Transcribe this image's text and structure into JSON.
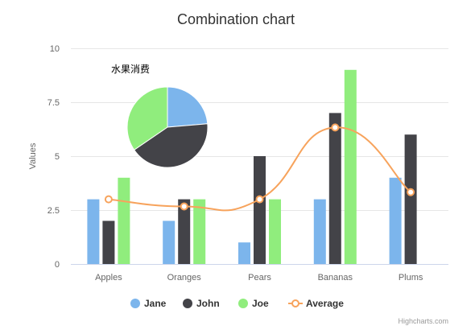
{
  "chart_data": {
    "type": "combination",
    "title": "Combination chart",
    "ylabel": "Values",
    "ylim": [
      0,
      10
    ],
    "yticks": [
      "0",
      "2.5",
      "5",
      "7.5",
      "10"
    ],
    "ytick_values": [
      0,
      2.5,
      5,
      7.5,
      10
    ],
    "grid": true,
    "categories": [
      "Apples",
      "Oranges",
      "Pears",
      "Bananas",
      "Plums"
    ],
    "series": [
      {
        "name": "Jane",
        "type": "bar",
        "color": "#7cb5ec",
        "values": [
          3,
          2,
          1,
          3,
          4
        ]
      },
      {
        "name": "John",
        "type": "bar",
        "color": "#434348",
        "values": [
          2,
          3,
          5,
          7,
          6
        ]
      },
      {
        "name": "Joe",
        "type": "bar",
        "color": "#90ed7d",
        "values": [
          4,
          3,
          3,
          9,
          0
        ]
      },
      {
        "name": "Average",
        "type": "spline",
        "color": "#f7a35c",
        "values": [
          3,
          2.67,
          3,
          6.33,
          3.33
        ]
      }
    ],
    "pie": {
      "label": "水果消费",
      "slices": [
        {
          "name": "Jane",
          "value": 13,
          "color": "#7cb5ec"
        },
        {
          "name": "John",
          "value": 23,
          "color": "#434348"
        },
        {
          "name": "Joe",
          "value": 19,
          "color": "#90ed7d"
        }
      ]
    },
    "legend_position": "bottom-center",
    "credits": "Highcharts.com"
  }
}
